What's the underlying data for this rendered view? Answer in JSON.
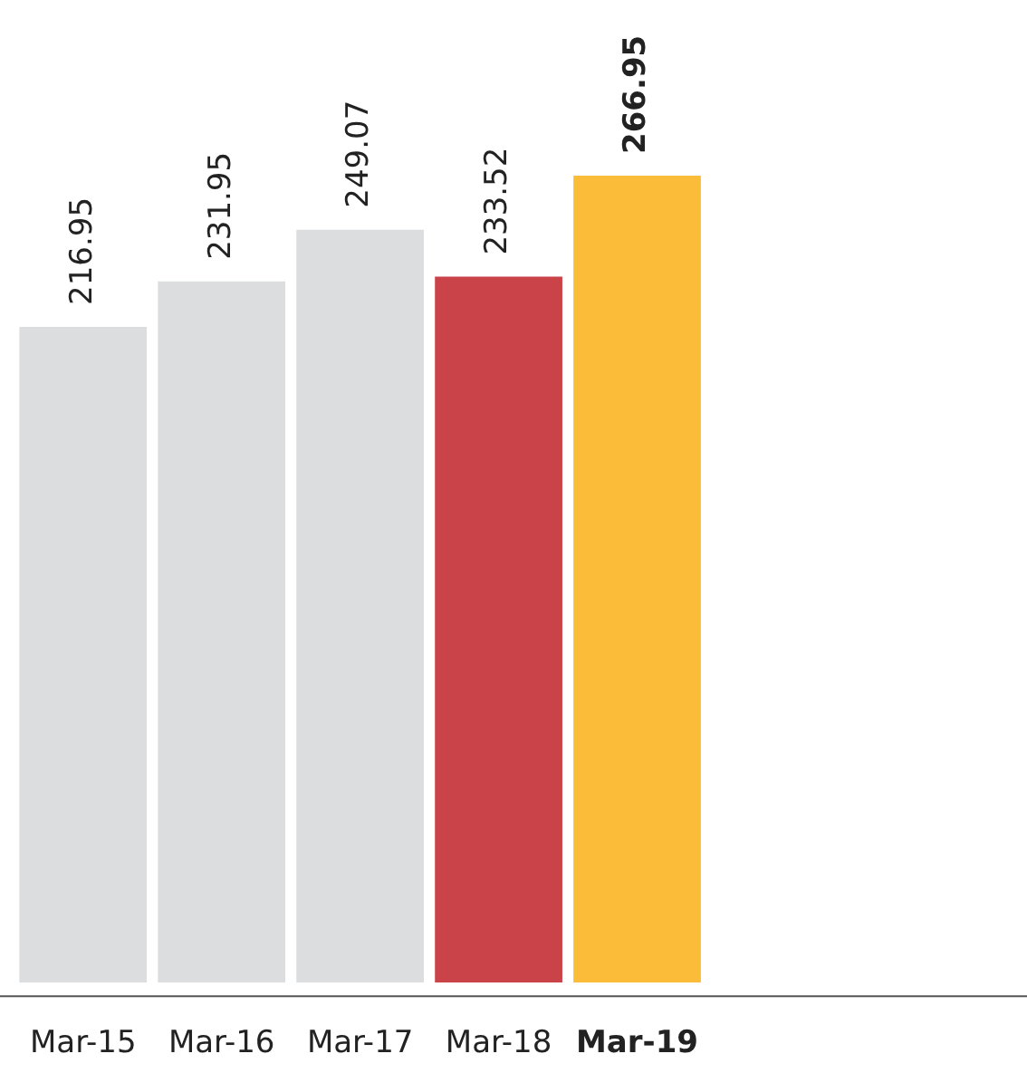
{
  "chart_data": {
    "type": "bar",
    "categories": [
      "Mar-15",
      "Mar-16",
      "Mar-17",
      "Mar-18",
      "Mar-19"
    ],
    "values": [
      216.95,
      231.95,
      249.07,
      233.52,
      266.95
    ],
    "colors": [
      "#dcdddf",
      "#dcdddf",
      "#dcdddf",
      "#c94348",
      "#fbbc3a"
    ],
    "data_labels": true,
    "grid": false,
    "legend": false
  }
}
